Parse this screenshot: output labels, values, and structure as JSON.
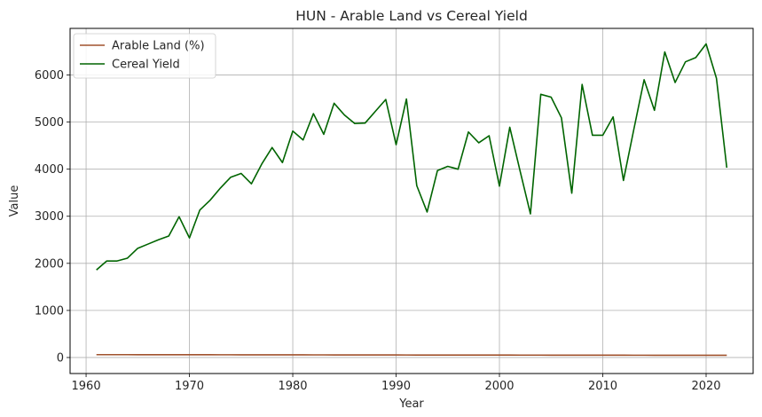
{
  "chart_data": {
    "type": "line",
    "title": "HUN - Arable Land vs Cereal Yield",
    "xlabel": "Year",
    "ylabel": "Value",
    "xlim": [
      1958.45,
      2024.55
    ],
    "ylim": [
      -340,
      6990
    ],
    "xticks": [
      1960,
      1970,
      1980,
      1990,
      2000,
      2010,
      2020
    ],
    "yticks": [
      0,
      1000,
      2000,
      3000,
      4000,
      5000,
      6000
    ],
    "grid": true,
    "legend_position": "upper-left",
    "x": [
      1961,
      1962,
      1963,
      1964,
      1965,
      1966,
      1967,
      1968,
      1969,
      1970,
      1971,
      1972,
      1973,
      1974,
      1975,
      1976,
      1977,
      1978,
      1979,
      1980,
      1981,
      1982,
      1983,
      1984,
      1985,
      1986,
      1987,
      1988,
      1989,
      1990,
      1991,
      1992,
      1993,
      1994,
      1995,
      1996,
      1997,
      1998,
      1999,
      2000,
      2001,
      2002,
      2003,
      2004,
      2005,
      2006,
      2007,
      2008,
      2009,
      2010,
      2011,
      2012,
      2013,
      2014,
      2015,
      2016,
      2017,
      2018,
      2019,
      2020,
      2021,
      2022
    ],
    "series": [
      {
        "name": "Arable Land (%)",
        "color": "#a0522d",
        "values": [
          60.5,
          60.4,
          60.3,
          60.2,
          60.0,
          59.9,
          59.7,
          59.5,
          59.3,
          59.1,
          58.8,
          58.5,
          58.2,
          57.9,
          57.6,
          57.3,
          57.0,
          56.7,
          56.4,
          56.2,
          56.0,
          55.8,
          55.6,
          55.4,
          55.2,
          55.0,
          54.8,
          54.6,
          54.4,
          54.2,
          53.5,
          52.8,
          52.2,
          51.5,
          51.6,
          51.7,
          51.8,
          51.8,
          51.7,
          51.6,
          51.3,
          51.2,
          51.1,
          50.9,
          50.6,
          50.3,
          50.0,
          49.8,
          49.6,
          49.4,
          49.2,
          49.0,
          48.8,
          48.6,
          48.4,
          48.2,
          48.0,
          47.8,
          47.6,
          47.4,
          47.2,
          47.0
        ]
      },
      {
        "name": "Cereal Yield",
        "color": "#006400",
        "values": [
          1860,
          2050,
          2050,
          2110,
          2320,
          2410,
          2500,
          2580,
          2990,
          2540,
          3130,
          3340,
          3600,
          3830,
          3910,
          3690,
          4110,
          4460,
          4140,
          4810,
          4620,
          5180,
          4740,
          5400,
          5150,
          4970,
          4980,
          5230,
          5480,
          4520,
          5490,
          3650,
          3090,
          3970,
          4060,
          4000,
          4790,
          4560,
          4710,
          3640,
          4890,
          3960,
          3050,
          5590,
          5530,
          5090,
          3490,
          5800,
          4720,
          4720,
          5110,
          3760,
          4840,
          5900,
          5250,
          6490,
          5840,
          6280,
          6370,
          6660,
          5930,
          4030
        ]
      }
    ]
  }
}
